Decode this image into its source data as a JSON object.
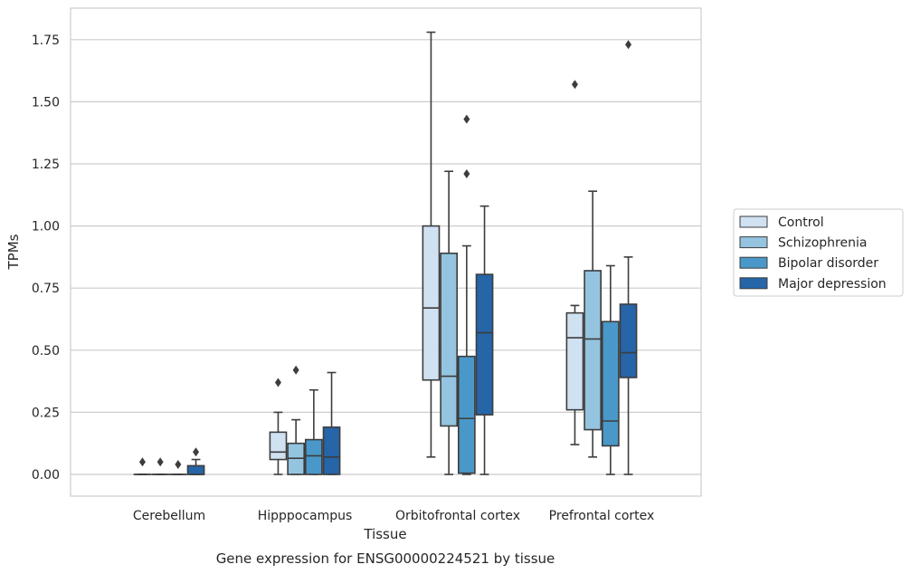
{
  "chart_data": {
    "type": "box",
    "xlabel": "Tissue",
    "ylabel": "TPMs",
    "caption": "Gene expression for ENSG00000224521 by tissue",
    "ylim": [
      -0.085,
      1.87
    ],
    "yticks": [
      "0.00",
      "0.25",
      "0.50",
      "0.75",
      "1.00",
      "1.25",
      "1.50",
      "1.75"
    ],
    "ytick_values": [
      0,
      0.25,
      0.5,
      0.75,
      1.0,
      1.25,
      1.5,
      1.75
    ],
    "grid": true,
    "legend_position": "right",
    "categories": [
      "Cerebellum",
      "Hipppocampus",
      "Orbitofrontal cortex",
      "Prefrontal cortex"
    ],
    "series": [
      {
        "name": "Control",
        "color": "#d0e1f2",
        "boxes": [
          {
            "whisker_low": 0,
            "q1": 0,
            "median": 0,
            "q3": 0,
            "whisker_high": 0,
            "outliers": [
              0.05
            ]
          },
          {
            "whisker_low": 0,
            "q1": 0.06,
            "median": 0.09,
            "q3": 0.17,
            "whisker_high": 0.25,
            "outliers": [
              0.37
            ]
          },
          {
            "whisker_low": 0.07,
            "q1": 0.38,
            "median": 0.67,
            "q3": 1.0,
            "whisker_high": 1.78,
            "outliers": []
          },
          {
            "whisker_low": 0.12,
            "q1": 0.26,
            "median": 0.55,
            "q3": 0.65,
            "whisker_high": 0.68,
            "outliers": [
              1.57
            ]
          }
        ]
      },
      {
        "name": "Schizophrenia",
        "color": "#94c4df",
        "boxes": [
          {
            "whisker_low": 0,
            "q1": 0,
            "median": 0,
            "q3": 0,
            "whisker_high": 0,
            "outliers": [
              0.05
            ]
          },
          {
            "whisker_low": 0,
            "q1": 0,
            "median": 0.065,
            "q3": 0.125,
            "whisker_high": 0.22,
            "outliers": [
              0.42
            ]
          },
          {
            "whisker_low": 0,
            "q1": 0.195,
            "median": 0.395,
            "q3": 0.89,
            "whisker_high": 1.22,
            "outliers": []
          },
          {
            "whisker_low": 0.07,
            "q1": 0.18,
            "median": 0.545,
            "q3": 0.82,
            "whisker_high": 1.14,
            "outliers": []
          }
        ]
      },
      {
        "name": "Bipolar disorder",
        "color": "#4a98c9",
        "boxes": [
          {
            "whisker_low": 0,
            "q1": 0,
            "median": 0,
            "q3": 0,
            "whisker_high": 0,
            "outliers": [
              0.04
            ]
          },
          {
            "whisker_low": 0,
            "q1": 0,
            "median": 0.075,
            "q3": 0.14,
            "whisker_high": 0.34,
            "outliers": []
          },
          {
            "whisker_low": 0,
            "q1": 0.005,
            "median": 0.225,
            "q3": 0.475,
            "whisker_high": 0.92,
            "outliers": [
              1.21,
              1.43
            ]
          },
          {
            "whisker_low": 0,
            "q1": 0.115,
            "median": 0.215,
            "q3": 0.615,
            "whisker_high": 0.84,
            "outliers": []
          }
        ]
      },
      {
        "name": "Major depression",
        "color": "#2565a8",
        "boxes": [
          {
            "whisker_low": 0,
            "q1": 0,
            "median": 0,
            "q3": 0.035,
            "whisker_high": 0.06,
            "outliers": [
              0.09
            ]
          },
          {
            "whisker_low": 0,
            "q1": 0,
            "median": 0.07,
            "q3": 0.19,
            "whisker_high": 0.41,
            "outliers": []
          },
          {
            "whisker_low": 0,
            "q1": 0.24,
            "median": 0.57,
            "q3": 0.805,
            "whisker_high": 1.08,
            "outliers": []
          },
          {
            "whisker_low": 0,
            "q1": 0.39,
            "median": 0.49,
            "q3": 0.685,
            "whisker_high": 0.875,
            "outliers": [
              1.73
            ]
          }
        ]
      }
    ]
  }
}
